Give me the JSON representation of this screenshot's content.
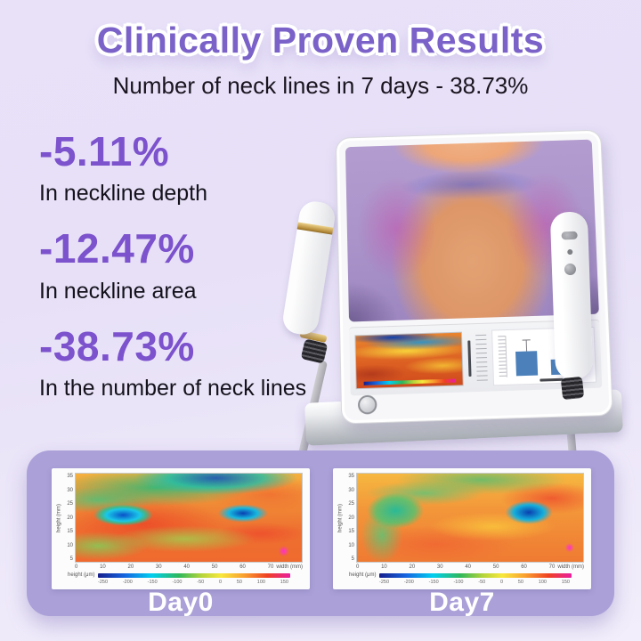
{
  "colors": {
    "background_top": "#e8e1f8",
    "background_bottom": "#f2eefb",
    "title_purple": "#7a62c9",
    "accent_purple": "#7c52cd",
    "panel_purple": "#aba0d8",
    "day_label_white": "#ffffff",
    "bar_blue": "#4b80ba"
  },
  "header": {
    "title": "Clinically Proven Results",
    "subtitle": "Number of neck lines in 7 days - 38.73%"
  },
  "stats": [
    {
      "value": "-5.11%",
      "label": "In neckline depth"
    },
    {
      "value": "-12.47%",
      "label": "In neckline area"
    },
    {
      "value": "-38.73%",
      "label": "In the number of neck lines"
    }
  ],
  "device": {
    "bar_chart": {
      "bar_heights": [
        "58%",
        "36%"
      ]
    }
  },
  "comparison": {
    "day_labels": [
      "Day0",
      "Day7"
    ]
  },
  "chart_data": [
    {
      "type": "heatmap",
      "title": "Day0",
      "xlabel": "width (mm)",
      "ylabel": "height (mm)",
      "x_ticks": [
        "0",
        "10",
        "20",
        "30",
        "40",
        "50",
        "60",
        "70"
      ],
      "y_ticks": [
        "35",
        "30",
        "25",
        "20",
        "15",
        "10",
        "5"
      ],
      "colorbar_label": "height (μm)",
      "colorbar_ticks": [
        "-250",
        "-200",
        "-150",
        "-100",
        "-50",
        "0",
        "50",
        "100",
        "150"
      ],
      "palette": [
        "#151e8c",
        "#1565e0",
        "#00cfee",
        "#2eb85c",
        "#b5d43a",
        "#f7e83c",
        "#f99f2f",
        "#ef4123",
        "#e91ea0"
      ],
      "legend_position": "bottom"
    },
    {
      "type": "heatmap",
      "title": "Day7",
      "xlabel": "width (mm)",
      "ylabel": "height (mm)",
      "x_ticks": [
        "0",
        "10",
        "20",
        "30",
        "40",
        "50",
        "60",
        "70"
      ],
      "y_ticks": [
        "35",
        "30",
        "25",
        "20",
        "15",
        "10",
        "5"
      ],
      "colorbar_label": "height (μm)",
      "colorbar_ticks": [
        "-250",
        "-200",
        "-150",
        "-100",
        "-50",
        "0",
        "50",
        "100",
        "150"
      ],
      "palette": [
        "#151e8c",
        "#1565e0",
        "#00cfee",
        "#2eb85c",
        "#b5d43a",
        "#f7e83c",
        "#f99f2f",
        "#ef4123",
        "#e91ea0"
      ],
      "legend_position": "bottom"
    }
  ]
}
